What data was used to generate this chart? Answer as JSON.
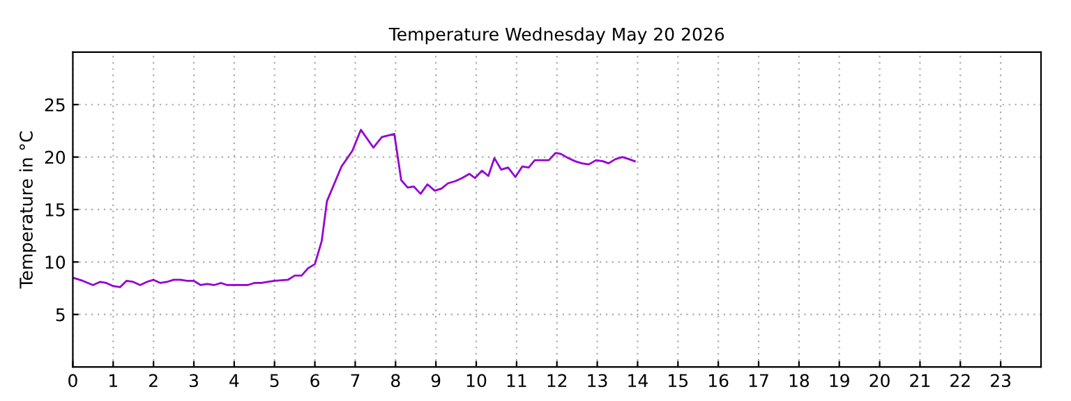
{
  "chart_data": {
    "type": "line",
    "title": "Temperature Wednesday May 20 2026",
    "ylabel": "Temperature in °C",
    "x": [
      0,
      0.25,
      0.5,
      0.67,
      0.83,
      1.0,
      1.17,
      1.33,
      1.5,
      1.67,
      1.83,
      2.0,
      2.17,
      2.33,
      2.5,
      2.67,
      2.83,
      3.0,
      3.17,
      3.33,
      3.5,
      3.67,
      3.83,
      4.0,
      4.33,
      4.5,
      4.67,
      4.83,
      5.0,
      5.33,
      5.5,
      5.67,
      5.83,
      6.0,
      6.17,
      6.3,
      6.66,
      6.93,
      7.14,
      7.45,
      7.66,
      7.97,
      8.14,
      8.3,
      8.45,
      8.62,
      8.79,
      8.97,
      9.14,
      9.3,
      9.48,
      9.65,
      9.83,
      9.97,
      10.14,
      10.3,
      10.45,
      10.62,
      10.79,
      10.97,
      11.14,
      11.3,
      11.45,
      11.8,
      11.97,
      12.1,
      12.28,
      12.45,
      12.62,
      12.79,
      12.97,
      13.14,
      13.28,
      13.45,
      13.62,
      13.79,
      13.93
    ],
    "series": [
      {
        "color": "#9400d3",
        "values": [
          8.5,
          8.2,
          7.8,
          8.1,
          8.0,
          7.7,
          7.6,
          8.2,
          8.1,
          7.8,
          8.1,
          8.3,
          8.0,
          8.1,
          8.3,
          8.3,
          8.2,
          8.2,
          7.8,
          7.9,
          7.8,
          8.0,
          7.8,
          7.8,
          7.8,
          8.0,
          8.0,
          8.1,
          8.2,
          8.3,
          8.7,
          8.7,
          9.4,
          9.8,
          12.0,
          15.8,
          19.1,
          20.6,
          22.6,
          20.9,
          21.9,
          22.2,
          17.8,
          17.1,
          17.2,
          16.5,
          17.4,
          16.8,
          17.0,
          17.5,
          17.7,
          18.0,
          18.4,
          18.0,
          18.7,
          18.2,
          19.9,
          18.8,
          19.0,
          18.1,
          19.1,
          19.0,
          19.7,
          19.7,
          20.4,
          20.3,
          19.9,
          19.6,
          19.4,
          19.3,
          19.7,
          19.6,
          19.4,
          19.8,
          20.0,
          19.8,
          19.6
        ]
      }
    ],
    "xlim": [
      0,
      24
    ],
    "xticks": [
      0,
      1,
      2,
      3,
      4,
      5,
      6,
      7,
      8,
      9,
      10,
      11,
      12,
      13,
      14,
      15,
      16,
      17,
      18,
      19,
      20,
      21,
      22,
      23
    ],
    "ylim": [
      0,
      30
    ],
    "yticks": [
      5,
      10,
      15,
      20,
      25
    ],
    "grid": true,
    "line_style": "solid",
    "marker": "none"
  }
}
